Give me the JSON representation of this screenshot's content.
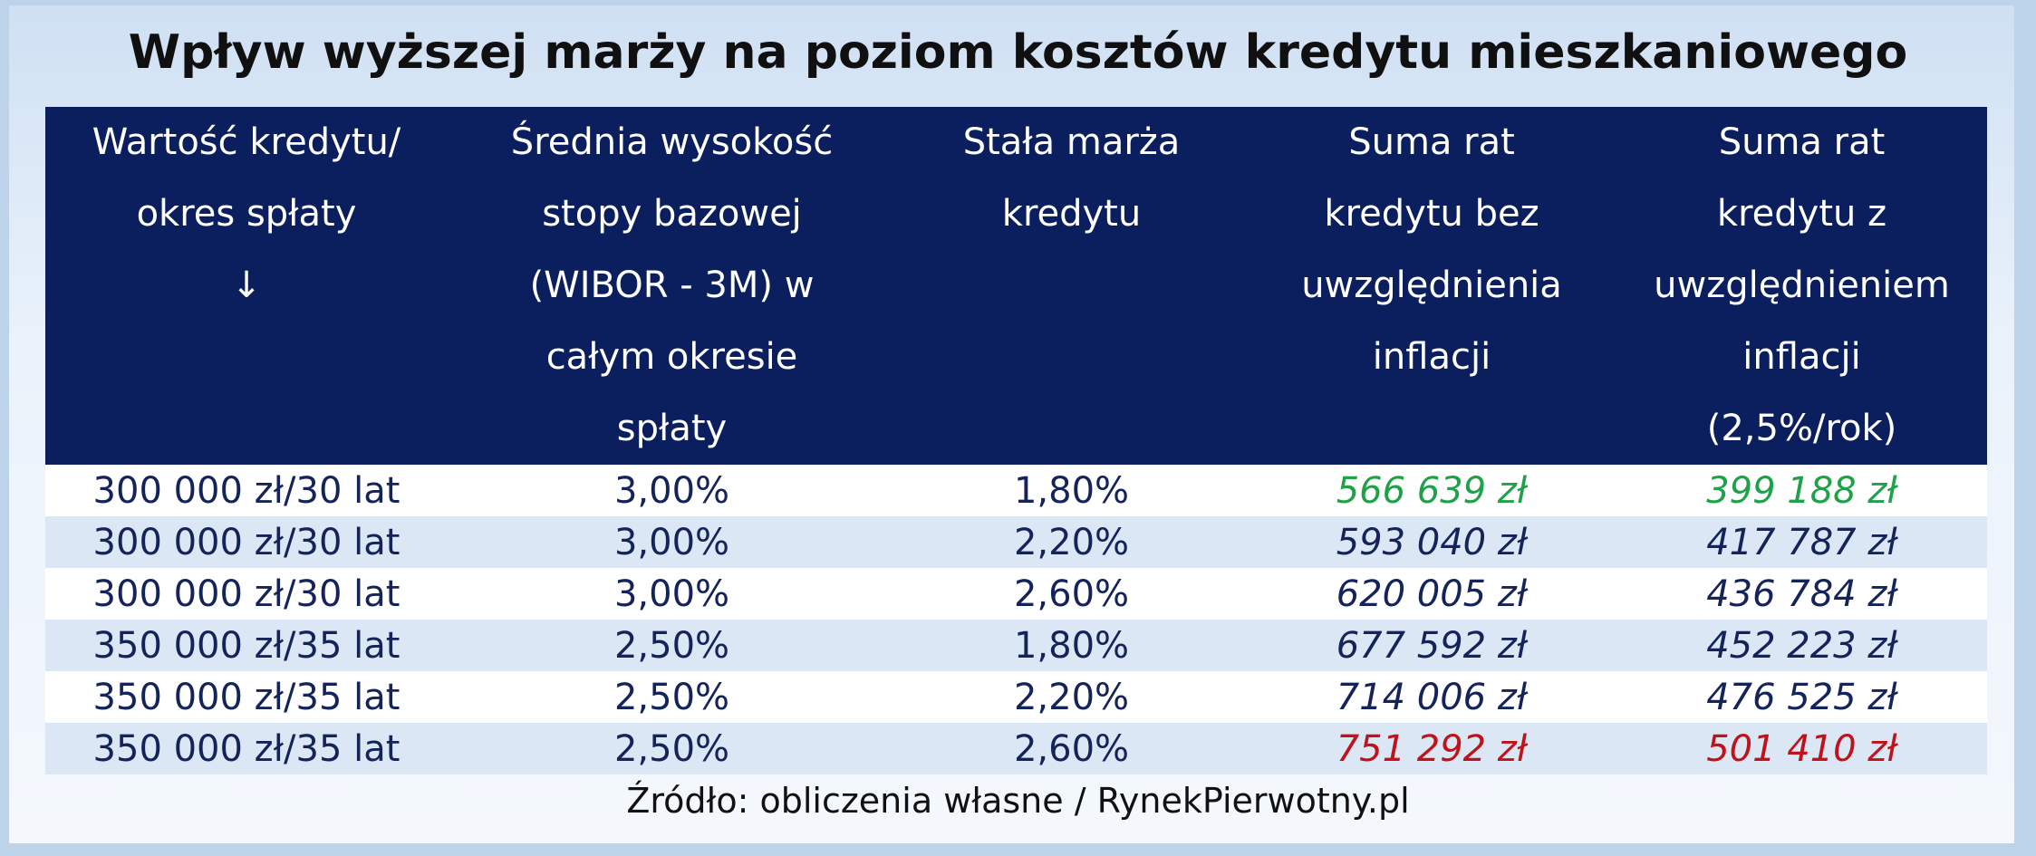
{
  "title": "Wpływ wyższej marży na poziom kosztów kredytu mieszkaniowego",
  "table": {
    "headers": [
      [
        "Wartość kredytu/",
        "okres spłaty",
        "↓"
      ],
      [
        "Średnia wysokość",
        "stopy bazowej",
        "(WIBOR - 3M) w",
        "całym okresie",
        "spłaty"
      ],
      [
        "Stała marża",
        "kredytu"
      ],
      [
        "Suma rat",
        "kredytu bez",
        "uwzględnienia",
        "inflacji"
      ],
      [
        "Suma rat",
        "kredytu z",
        "uwzględnieniem",
        "inflacji",
        "(2,5%/rok)"
      ]
    ],
    "rows": [
      [
        "300 000 zł/30 lat",
        "3,00%",
        "1,80%",
        "566 639 zł",
        "399 188 zł"
      ],
      [
        "300 000 zł/30 lat",
        "3,00%",
        "2,20%",
        "593 040 zł",
        "417 787 zł"
      ],
      [
        "300 000 zł/30 lat",
        "3,00%",
        "2,60%",
        "620 005 zł",
        "436 784 zł"
      ],
      [
        "350 000 zł/35 lat",
        "2,50%",
        "1,80%",
        "677 592 zł",
        "452 223 zł"
      ],
      [
        "350 000 zł/35 lat",
        "2,50%",
        "2,20%",
        "714 006 zł",
        "476 525 zł"
      ],
      [
        "350 000 zł/35 lat",
        "2,50%",
        "2,60%",
        "751 292 zł",
        "501 410 zł"
      ]
    ]
  },
  "source": "Źródło: obliczenia własne / RynekPierwotny.pl"
}
